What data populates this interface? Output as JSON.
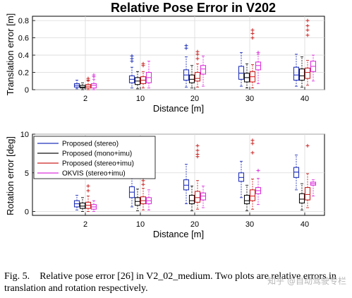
{
  "figure": {
    "title": "Relative Pose Error in V202",
    "caption_number": "Fig. 5.",
    "caption_text": "Relative pose error [26] in V2_02_medium. Two plots are relative errors in translation and rotation respectively.",
    "watermark": "知乎 @自动驾驶专栏"
  },
  "chart_data": [
    {
      "type": "boxplot",
      "title": "Relative Pose Error in V202",
      "xlabel": "Distance [m]",
      "ylabel": "Translation error [m]",
      "categories": [
        "2",
        "10",
        "20",
        "30",
        "40"
      ],
      "ylim": [
        0,
        0.85
      ],
      "yticks": [
        0,
        0.2,
        0.4,
        0.6,
        0.8
      ],
      "ytick_labels": [
        "0",
        "0.2",
        "0.4",
        "0.6",
        "0.8"
      ],
      "grid": true,
      "series": [
        {
          "name": "Proposed (stereo)",
          "color": "#2233bb",
          "boxes": [
            {
              "min": 0.01,
              "q1": 0.03,
              "median": 0.05,
              "q3": 0.07,
              "max": 0.11,
              "outliers": []
            },
            {
              "min": 0.02,
              "q1": 0.08,
              "median": 0.12,
              "q3": 0.16,
              "max": 0.26,
              "outliers": [
                0.33,
                0.36,
                0.39
              ]
            },
            {
              "min": 0.03,
              "q1": 0.11,
              "median": 0.17,
              "q3": 0.23,
              "max": 0.38,
              "outliers": [
                0.48,
                0.51
              ]
            },
            {
              "min": 0.04,
              "q1": 0.12,
              "median": 0.19,
              "q3": 0.27,
              "max": 0.43,
              "outliers": []
            },
            {
              "min": 0.04,
              "q1": 0.11,
              "median": 0.17,
              "q3": 0.26,
              "max": 0.41,
              "outliers": []
            }
          ]
        },
        {
          "name": "Proposed (mono+imu)",
          "color": "#111111",
          "boxes": [
            {
              "min": 0.0,
              "q1": 0.02,
              "median": 0.03,
              "q3": 0.05,
              "max": 0.08,
              "outliers": []
            },
            {
              "min": 0.01,
              "q1": 0.06,
              "median": 0.1,
              "q3": 0.14,
              "max": 0.21,
              "outliers": []
            },
            {
              "min": 0.02,
              "q1": 0.08,
              "median": 0.12,
              "q3": 0.17,
              "max": 0.28,
              "outliers": []
            },
            {
              "min": 0.02,
              "q1": 0.09,
              "median": 0.14,
              "q3": 0.19,
              "max": 0.3,
              "outliers": []
            },
            {
              "min": 0.03,
              "q1": 0.11,
              "median": 0.16,
              "q3": 0.24,
              "max": 0.38,
              "outliers": []
            }
          ]
        },
        {
          "name": "Proposed (stereo+imu)",
          "color": "#cc2222",
          "boxes": [
            {
              "min": 0.0,
              "q1": 0.02,
              "median": 0.04,
              "q3": 0.06,
              "max": 0.1,
              "outliers": [
                0.11,
                0.13
              ]
            },
            {
              "min": 0.02,
              "q1": 0.07,
              "median": 0.11,
              "q3": 0.15,
              "max": 0.21,
              "outliers": [
                0.28,
                0.3
              ]
            },
            {
              "min": 0.03,
              "q1": 0.1,
              "median": 0.13,
              "q3": 0.2,
              "max": 0.3,
              "outliers": [
                0.36,
                0.41,
                0.44
              ]
            },
            {
              "min": 0.02,
              "q1": 0.09,
              "median": 0.15,
              "q3": 0.21,
              "max": 0.29,
              "outliers": [
                0.6,
                0.65,
                0.69
              ]
            },
            {
              "min": 0.05,
              "q1": 0.13,
              "median": 0.2,
              "q3": 0.25,
              "max": 0.34,
              "outliers": [
                0.63,
                0.69,
                0.74,
                0.8
              ]
            }
          ]
        },
        {
          "name": "OKVIS (stereo+imu)",
          "color": "#dd33dd",
          "boxes": [
            {
              "min": 0.0,
              "q1": 0.02,
              "median": 0.05,
              "q3": 0.07,
              "max": 0.12,
              "outliers": [
                0.15,
                0.17
              ]
            },
            {
              "min": 0.02,
              "q1": 0.08,
              "median": 0.14,
              "q3": 0.2,
              "max": 0.33,
              "outliers": []
            },
            {
              "min": 0.04,
              "q1": 0.18,
              "median": 0.24,
              "q3": 0.28,
              "max": 0.39,
              "outliers": []
            },
            {
              "min": 0.07,
              "q1": 0.23,
              "median": 0.28,
              "q3": 0.32,
              "max": 0.41,
              "outliers": [
                0.43
              ]
            },
            {
              "min": 0.1,
              "q1": 0.21,
              "median": 0.27,
              "q3": 0.33,
              "max": 0.4,
              "outliers": []
            }
          ]
        }
      ]
    },
    {
      "type": "boxplot",
      "xlabel": "Distance [m]",
      "ylabel": "Rotation error [deg]",
      "categories": [
        "2",
        "10",
        "20",
        "30",
        "40"
      ],
      "ylim": [
        -0.5,
        10
      ],
      "yticks": [
        0,
        5,
        10
      ],
      "ytick_labels": [
        "0",
        "5",
        "10"
      ],
      "grid": true,
      "legend_position": "top-left",
      "series": [
        {
          "name": "Proposed (stereo)",
          "color": "#2233bb",
          "boxes": [
            {
              "min": 0.2,
              "q1": 0.6,
              "median": 1.0,
              "q3": 1.4,
              "max": 2.1,
              "outliers": []
            },
            {
              "min": 0.6,
              "q1": 1.8,
              "median": 2.5,
              "q3": 3.2,
              "max": 4.5,
              "outliers": []
            },
            {
              "min": 1.0,
              "q1": 2.8,
              "median": 3.4,
              "q3": 4.1,
              "max": 6.1,
              "outliers": []
            },
            {
              "min": 1.8,
              "q1": 3.9,
              "median": 4.4,
              "q3": 5.0,
              "max": 6.5,
              "outliers": []
            },
            {
              "min": 2.8,
              "q1": 4.4,
              "median": 5.1,
              "q3": 5.7,
              "max": 7.3,
              "outliers": []
            }
          ]
        },
        {
          "name": "Proposed (mono+imu)",
          "color": "#111111",
          "boxes": [
            {
              "min": 0.0,
              "q1": 0.4,
              "median": 0.7,
              "q3": 1.1,
              "max": 1.8,
              "outliers": []
            },
            {
              "min": 0.1,
              "q1": 0.8,
              "median": 1.3,
              "q3": 1.8,
              "max": 2.9,
              "outliers": []
            },
            {
              "min": 0.1,
              "q1": 1.0,
              "median": 1.4,
              "q3": 2.1,
              "max": 3.3,
              "outliers": []
            },
            {
              "min": 0.1,
              "q1": 1.0,
              "median": 1.4,
              "q3": 2.1,
              "max": 3.4,
              "outliers": []
            },
            {
              "min": 0.2,
              "q1": 1.1,
              "median": 1.6,
              "q3": 2.3,
              "max": 3.6,
              "outliers": []
            }
          ]
        },
        {
          "name": "Proposed (stereo+imu)",
          "color": "#cc2222",
          "boxes": [
            {
              "min": 0.0,
              "q1": 0.4,
              "median": 0.8,
              "q3": 1.2,
              "max": 2.0,
              "outliers": [
                2.7,
                3.3
              ]
            },
            {
              "min": 0.2,
              "q1": 1.0,
              "median": 1.4,
              "q3": 1.9,
              "max": 3.0,
              "outliers": [
                3.5,
                4.0
              ]
            },
            {
              "min": 0.3,
              "q1": 1.2,
              "median": 1.8,
              "q3": 2.6,
              "max": 4.0,
              "outliers": [
                7.1,
                7.4,
                7.9,
                8.5
              ]
            },
            {
              "min": 0.3,
              "q1": 1.4,
              "median": 2.0,
              "q3": 2.8,
              "max": 4.2,
              "outliers": [
                7.6,
                8.8,
                9.2
              ]
            },
            {
              "min": 0.5,
              "q1": 1.5,
              "median": 2.2,
              "q3": 3.1,
              "max": 4.9,
              "outliers": [
                8.5
              ]
            }
          ]
        },
        {
          "name": "OKVIS (stereo+imu)",
          "color": "#dd33dd",
          "boxes": [
            {
              "min": 0.0,
              "q1": 0.3,
              "median": 0.6,
              "q3": 0.9,
              "max": 1.4,
              "outliers": []
            },
            {
              "min": 0.2,
              "q1": 1.0,
              "median": 1.4,
              "q3": 1.8,
              "max": 2.8,
              "outliers": []
            },
            {
              "min": 0.5,
              "q1": 1.5,
              "median": 2.0,
              "q3": 2.4,
              "max": 3.3,
              "outliers": []
            },
            {
              "min": 0.9,
              "q1": 2.3,
              "median": 2.7,
              "q3": 3.1,
              "max": 4.3,
              "outliers": [
                5.3
              ]
            },
            {
              "min": 2.0,
              "q1": 3.4,
              "median": 3.6,
              "q3": 3.8,
              "max": 4.1,
              "outliers": []
            }
          ]
        }
      ]
    }
  ]
}
